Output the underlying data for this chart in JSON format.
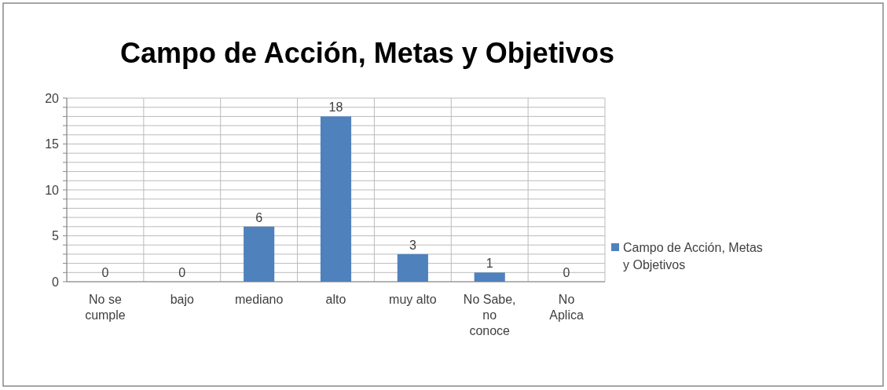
{
  "chart_data": {
    "type": "bar",
    "title": "Campo de Acción, Metas y Objetivos",
    "categories": [
      "No se cumple",
      "bajo",
      "mediano",
      "alto",
      "muy alto",
      "No Sabe, no conoce",
      "No Aplica"
    ],
    "series": [
      {
        "name": "Campo de Acción, Metas y Objetivos",
        "color": "#4f81bd",
        "values": [
          0,
          0,
          6,
          18,
          3,
          1,
          0
        ]
      }
    ],
    "ylim": [
      0,
      20
    ],
    "yticks": [
      0,
      {
        "value": 1,
        "label": null
      },
      {
        "value": 2,
        "label": null
      },
      {
        "value": 3,
        "label": null
      },
      {
        "value": 4,
        "label": null
      },
      5,
      {
        "value": 6,
        "label": null
      },
      {
        "value": 7,
        "label": null
      },
      {
        "value": 8,
        "label": null
      },
      {
        "value": 9,
        "label": null
      },
      10,
      {
        "value": 11,
        "label": null
      },
      {
        "value": 12,
        "label": null
      },
      {
        "value": 13,
        "label": null
      },
      {
        "value": 14,
        "label": null
      },
      15,
      {
        "value": 16,
        "label": null
      },
      {
        "value": 17,
        "label": null
      },
      {
        "value": 18,
        "label": null
      },
      {
        "value": 19,
        "label": null
      },
      20
    ],
    "grid": true,
    "legend": "right",
    "data_labels": true
  }
}
